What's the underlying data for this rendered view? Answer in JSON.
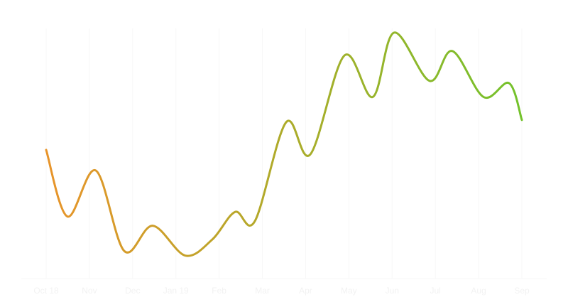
{
  "chart_data": {
    "type": "line",
    "title": "",
    "xlabel": "",
    "ylabel": "",
    "x_labels": [
      "Oct 18",
      "Nov",
      "Dec",
      "Jan 19",
      "Feb",
      "Mar",
      "Apr",
      "May",
      "Jun",
      "Jul",
      "Aug",
      "Sep"
    ],
    "y_axis_visible": false,
    "grid": {
      "vertical": true,
      "horizontal": false
    },
    "legend": "none",
    "series": [
      {
        "gradient": [
          "#e8942a",
          "#73c22b"
        ],
        "points": [
          {
            "x": "2018-10-01",
            "y": 5.6
          },
          {
            "x": "2018-10-16",
            "y": 2.7
          },
          {
            "x": "2018-11-05",
            "y": 4.7
          },
          {
            "x": "2018-11-25",
            "y": 1.2
          },
          {
            "x": "2018-12-15",
            "y": 2.3
          },
          {
            "x": "2019-01-07",
            "y": 1.0
          },
          {
            "x": "2019-01-26",
            "y": 1.7
          },
          {
            "x": "2019-02-11",
            "y": 2.9
          },
          {
            "x": "2019-02-25",
            "y": 2.5
          },
          {
            "x": "2019-03-19",
            "y": 6.8
          },
          {
            "x": "2019-04-05",
            "y": 5.4
          },
          {
            "x": "2019-04-29",
            "y": 9.7
          },
          {
            "x": "2019-05-19",
            "y": 7.9
          },
          {
            "x": "2019-06-03",
            "y": 10.7
          },
          {
            "x": "2019-06-28",
            "y": 8.6
          },
          {
            "x": "2019-07-14",
            "y": 9.9
          },
          {
            "x": "2019-08-05",
            "y": 7.9
          },
          {
            "x": "2019-08-23",
            "y": 8.5
          },
          {
            "x": "2019-09-01",
            "y": 6.9
          }
        ]
      }
    ],
    "ylim": [
      0,
      11.5
    ],
    "xlim": [
      "2018-10-01",
      "2019-09-01"
    ]
  }
}
